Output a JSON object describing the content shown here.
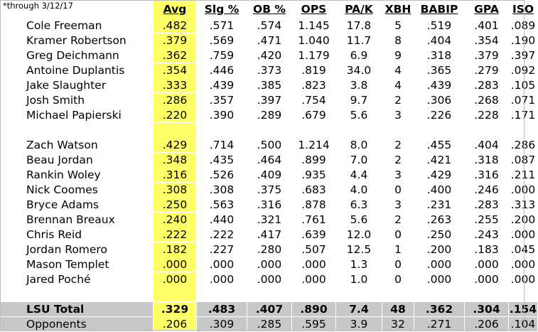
{
  "note": "*through 3/12/17",
  "headers": [
    "Avg",
    "Slg %",
    "OB %",
    "OPS",
    "PA/K",
    "XBH",
    "BABIP",
    "GPA",
    "ISO"
  ],
  "group1": [
    {
      "name": "Cole Freeman",
      "v": [
        ".482",
        ".571",
        ".574",
        "1.145",
        "17.8",
        "5",
        ".519",
        ".401",
        ".089"
      ]
    },
    {
      "name": "Kramer Robertson",
      "v": [
        ".379",
        ".569",
        ".471",
        "1.040",
        "11.7",
        "8",
        ".404",
        ".354",
        ".190"
      ]
    },
    {
      "name": "Greg Deichmann",
      "v": [
        ".362",
        ".759",
        ".420",
        "1.179",
        "6.9",
        "9",
        ".318",
        ".379",
        ".397"
      ]
    },
    {
      "name": "Antoine Duplantis",
      "v": [
        ".354",
        ".446",
        ".373",
        ".819",
        "34.0",
        "4",
        ".365",
        ".279",
        ".092"
      ]
    },
    {
      "name": "Jake Slaughter",
      "v": [
        ".333",
        ".439",
        ".385",
        ".823",
        "3.8",
        "4",
        ".439",
        ".283",
        ".105"
      ]
    },
    {
      "name": "Josh Smith",
      "v": [
        ".286",
        ".357",
        ".397",
        ".754",
        "9.7",
        "2",
        ".306",
        ".268",
        ".071"
      ]
    },
    {
      "name": "Michael Papierski",
      "v": [
        ".220",
        ".390",
        ".289",
        ".679",
        "5.6",
        "3",
        ".226",
        ".228",
        ".171"
      ]
    }
  ],
  "group2": [
    {
      "name": "Zach Watson",
      "v": [
        ".429",
        ".714",
        ".500",
        "1.214",
        "8.0",
        "2",
        ".455",
        ".404",
        ".286"
      ]
    },
    {
      "name": "Beau Jordan",
      "v": [
        ".348",
        ".435",
        ".464",
        ".899",
        "7.0",
        "2",
        ".421",
        ".318",
        ".087"
      ]
    },
    {
      "name": "Rankin Woley",
      "v": [
        ".316",
        ".526",
        ".409",
        ".935",
        "4.4",
        "3",
        ".429",
        ".316",
        ".211"
      ]
    },
    {
      "name": "Nick Coomes",
      "v": [
        ".308",
        ".308",
        ".375",
        ".683",
        "4.0",
        "0",
        ".400",
        ".246",
        ".000"
      ]
    },
    {
      "name": "Bryce Adams",
      "v": [
        ".250",
        ".563",
        ".316",
        ".878",
        "6.3",
        "3",
        ".231",
        ".283",
        ".313"
      ]
    },
    {
      "name": "Brennan Breaux",
      "v": [
        ".240",
        ".440",
        ".321",
        ".761",
        "5.6",
        "2",
        ".263",
        ".255",
        ".200"
      ]
    },
    {
      "name": "Chris Reid",
      "v": [
        ".222",
        ".222",
        ".417",
        ".639",
        "12.0",
        "0",
        ".250",
        ".243",
        ".000"
      ]
    },
    {
      "name": "Jordan Romero",
      "v": [
        ".182",
        ".227",
        ".280",
        ".507",
        "12.5",
        "1",
        ".200",
        ".183",
        ".045"
      ]
    },
    {
      "name": "Mason Templet",
      "v": [
        ".000",
        ".000",
        ".000",
        ".000",
        "1.3",
        "0",
        ".000",
        ".000",
        ".000"
      ]
    },
    {
      "name": "Jared Poché",
      "v": [
        ".000",
        ".000",
        ".000",
        ".000",
        "1.0",
        "0",
        ".000",
        ".000",
        ".000"
      ]
    }
  ],
  "totals": [
    {
      "name": "LSU Total",
      "bold": true,
      "v": [
        ".329",
        ".483",
        ".407",
        ".890",
        "7.4",
        "48",
        ".362",
        ".304",
        ".154"
      ]
    },
    {
      "name": "Opponents",
      "bold": false,
      "v": [
        ".206",
        ".309",
        ".285",
        ".595",
        "3.9",
        "32",
        ".271",
        ".206",
        ".104"
      ]
    }
  ],
  "colors": {
    "highlight": "#ffff66",
    "total_bg": "#c8c8c8"
  }
}
